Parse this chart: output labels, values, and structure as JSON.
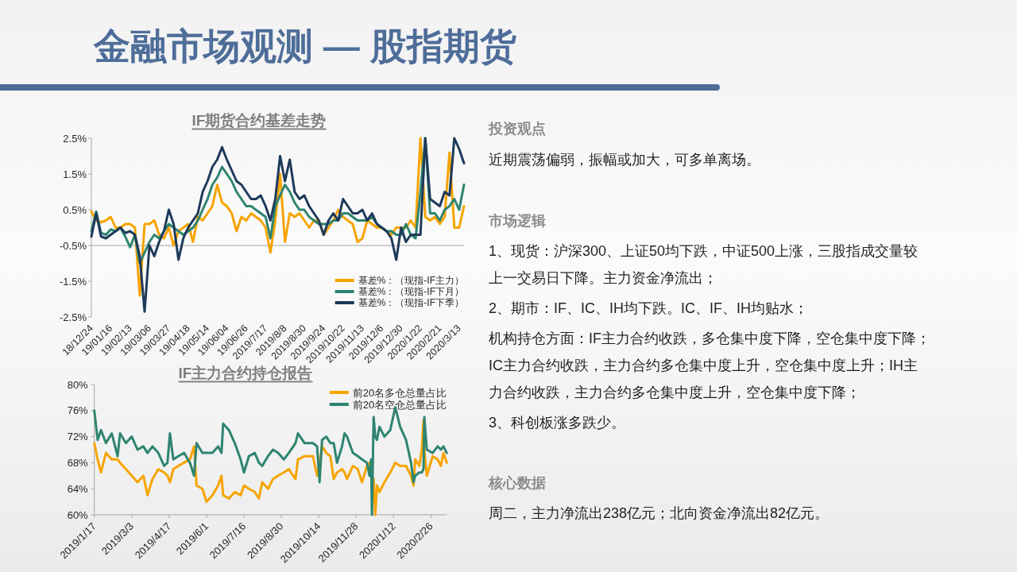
{
  "chart_data": [
    {
      "type": "other",
      "title": "金融市场观测 — 股指期货"
    },
    {
      "type": "line",
      "title": "IF期货合约基差走势",
      "categories": [
        "18/12/24",
        null,
        null,
        null,
        "19/01/16",
        null,
        null,
        null,
        "19/02/13",
        null,
        null,
        null,
        "19/03/06",
        null,
        null,
        null,
        "19/03/27",
        null,
        null,
        null,
        "19/04/18",
        null,
        null,
        null,
        "19/05/14",
        null,
        null,
        null,
        "19/06/04",
        null,
        null,
        null,
        "19/06/26",
        null,
        null,
        null,
        "2019/7/17",
        null,
        null,
        null,
        "2019/8/8",
        null,
        null,
        null,
        "2019/8/30",
        null,
        null,
        null,
        "2019/9/24",
        null,
        null,
        null,
        "2019/10/22",
        null,
        null,
        null,
        "2019/11/13",
        null,
        null,
        null,
        "2019/12/6",
        null,
        null,
        null,
        "2019/12/30",
        null,
        null,
        null,
        "2020/1/22",
        null,
        null,
        null,
        "2020/2/21",
        null,
        null,
        null,
        "2020/3/13",
        null
      ],
      "series": [
        {
          "name": "基差%：（现指-IF主力）",
          "color": "#f7a400",
          "values": [
            0.45,
            0.2,
            0.15,
            0.2,
            0.3,
            0.0,
            0.0,
            0.1,
            0.1,
            0.0,
            -1.9,
            0.1,
            0.1,
            0.2,
            -0.2,
            -0.3,
            0.0,
            -0.5,
            -0.1,
            0.0,
            0.1,
            -0.4,
            0.3,
            0.2,
            0.4,
            0.6,
            1.2,
            0.7,
            0.6,
            0.4,
            -0.1,
            0.3,
            0.2,
            0.4,
            0.3,
            0.2,
            0.0,
            -0.7,
            0.2,
            1.5,
            -0.4,
            0.4,
            0.3,
            0.4,
            0.2,
            0.0,
            0.2,
            0.2,
            -0.2,
            0.0,
            0.2,
            0.5,
            0.3,
            0.2,
            0.1,
            -0.4,
            -0.3,
            0.2,
            0.1,
            0.0,
            0.0,
            -0.1,
            -0.2,
            0.0,
            0.0,
            0.0,
            0.2,
            0.0,
            2.5,
            0.3,
            0.2,
            0.3,
            0.1,
            0.3,
            2.1,
            0.0,
            0.0,
            0.6
          ]
        },
        {
          "name": "基差%：（现指-IF下月）",
          "color": "#2e8470",
          "values": [
            -0.1,
            0.45,
            -0.15,
            -0.2,
            -0.05,
            -0.1,
            0.0,
            -0.25,
            -0.55,
            -0.2,
            -1.0,
            -0.7,
            -0.4,
            -0.2,
            -0.3,
            -0.1,
            0.1,
            0.0,
            -0.1,
            -0.2,
            -0.1,
            0.0,
            0.2,
            0.5,
            0.8,
            1.2,
            1.4,
            1.7,
            1.5,
            1.3,
            1.0,
            0.8,
            0.6,
            0.6,
            0.5,
            0.4,
            0.3,
            -0.3,
            0.6,
            0.9,
            1.2,
            1.0,
            0.7,
            0.5,
            0.5,
            0.3,
            0.2,
            0.1,
            0.1,
            0.1,
            0.2,
            0.2,
            0.4,
            0.4,
            0.3,
            0.2,
            0.2,
            0.2,
            0.3,
            0.1,
            0.0,
            -0.1,
            -0.1,
            -0.2,
            -0.2,
            0.1,
            -0.2,
            -0.3,
            1.0,
            2.5,
            0.4,
            0.4,
            0.2,
            0.5,
            0.6,
            0.8,
            0.5,
            1.2
          ]
        },
        {
          "name": "基差%：（现指-IF下季）",
          "color": "#1e3a5a",
          "values": [
            -0.25,
            0.4,
            -0.25,
            -0.3,
            -0.2,
            -0.1,
            0.0,
            -0.15,
            -0.1,
            -0.2,
            -0.8,
            -2.35,
            -0.5,
            -0.8,
            -0.4,
            -0.1,
            0.5,
            0.1,
            -0.9,
            -0.3,
            0.0,
            0.2,
            0.4,
            1.0,
            1.3,
            1.7,
            1.9,
            2.25,
            1.9,
            1.6,
            1.3,
            1.2,
            1.0,
            0.8,
            0.8,
            0.9,
            0.6,
            0.2,
            0.8,
            2.0,
            1.3,
            1.9,
            1.0,
            0.8,
            0.9,
            0.6,
            0.4,
            0.2,
            -0.2,
            0.2,
            0.4,
            0.2,
            0.8,
            0.6,
            0.4,
            0.4,
            0.5,
            0.2,
            0.4,
            0.1,
            0.0,
            -0.1,
            -0.3,
            -0.9,
            0.0,
            -0.4,
            -0.2,
            -0.2,
            -0.2,
            2.5,
            0.8,
            0.7,
            0.6,
            1.0,
            0.9,
            2.5,
            2.2,
            1.8
          ]
        }
      ],
      "ylim": [
        -2.5,
        2.5
      ],
      "yticks": [
        {
          "value": -2.5,
          "label": "-2.5%"
        },
        {
          "value": -1.5,
          "label": "-1.5%"
        },
        {
          "value": -0.5,
          "label": "-0.5%"
        },
        {
          "value": 0.5,
          "label": "0.5%"
        },
        {
          "value": 1.5,
          "label": "1.5%"
        },
        {
          "value": 2.5,
          "label": "2.5%"
        }
      ],
      "legend": "bottom right"
    },
    {
      "type": "line",
      "title": "IF主力合约持仓报告",
      "x": [
        "2019-01-17",
        "2019-01-21",
        "2019-01-25",
        "2019-01-31",
        "2019-02-07",
        "2019-02-14",
        "2019-02-17",
        "2019-02-24",
        "2019-03-03",
        "2019-03-10",
        "2019-03-17",
        "2019-03-22",
        "2019-03-28",
        "2019-04-04",
        "2019-04-11",
        "2019-04-15",
        "2019-04-18",
        "2019-04-22",
        "2019-04-28",
        "2019-05-05",
        "2019-05-12",
        "2019-05-17",
        "2019-05-20",
        "2019-05-27",
        "2019-06-01",
        "2019-06-08",
        "2019-06-15",
        "2019-06-19",
        "2019-06-21",
        "2019-06-28",
        "2019-07-05",
        "2019-07-12",
        "2019-07-16",
        "2019-07-22",
        "2019-07-29",
        "2019-08-03",
        "2019-08-07",
        "2019-08-14",
        "2019-08-20",
        "2019-08-26",
        "2019-09-02",
        "2019-09-08",
        "2019-09-16",
        "2019-09-19",
        "2019-09-27",
        "2019-10-07",
        "2019-10-12",
        "2019-10-15",
        "2019-10-18",
        "2019-10-23",
        "2019-10-28",
        "2019-11-01",
        "2019-11-05",
        "2019-11-11",
        "2019-11-14",
        "2019-11-17",
        "2019-11-24",
        "2019-11-30",
        "2019-12-05",
        "2019-12-11",
        "2019-12-14",
        "2019-12-16",
        "2019-12-17",
        "2019-12-19",
        "2019-12-21",
        "2019-12-23",
        "2019-12-26",
        "2020-01-01",
        "2020-01-08",
        "2020-01-14",
        "2020-01-20",
        "2020-01-27",
        "2020-02-02",
        "2020-02-05",
        "2020-02-07",
        "2020-02-12",
        "2020-02-15",
        "2020-02-17",
        "2020-02-18",
        "2020-02-21",
        "2020-02-28",
        "2020-03-05",
        "2020-03-09",
        "2020-03-12",
        "2020-03-16"
      ],
      "series": [
        {
          "name": "前20名多仓总量占比",
          "color": "#f7a400",
          "values": [
            71.0,
            68.5,
            66.5,
            69.5,
            68.5,
            68.5,
            68.0,
            67.0,
            66.0,
            65.0,
            66.0,
            63.0,
            65.5,
            67.0,
            66.5,
            66.0,
            65.0,
            67.0,
            67.5,
            68.0,
            68.5,
            70.5,
            64.5,
            64.0,
            62.0,
            63.0,
            64.5,
            66.0,
            63.0,
            62.5,
            63.5,
            63.0,
            64.5,
            64.0,
            63.5,
            62.5,
            65.0,
            64.0,
            65.5,
            66.0,
            66.5,
            67.0,
            65.5,
            68.5,
            69.0,
            69.0,
            66.0,
            68.0,
            70.5,
            69.5,
            69.0,
            65.5,
            66.5,
            67.0,
            66.5,
            65.5,
            67.5,
            67.0,
            65.0,
            67.5,
            68.0,
            66.0,
            66.0,
            65.5,
            60.0,
            64.5,
            63.5,
            65.0,
            66.5,
            68.0,
            67.5,
            67.5,
            66.0,
            64.5,
            68.5,
            67.5,
            70.0,
            74.5,
            70.0,
            66.0,
            69.0,
            68.5,
            67.5,
            69.5,
            68.0
          ]
        },
        {
          "name": "前20名空仓总量占比",
          "color": "#2e8470",
          "values": [
            76.0,
            71.5,
            73.0,
            71.0,
            72.5,
            69.0,
            72.5,
            71.0,
            72.0,
            70.0,
            70.5,
            69.5,
            70.5,
            69.5,
            67.5,
            68.0,
            72.5,
            68.5,
            69.0,
            69.5,
            68.0,
            66.0,
            71.0,
            69.5,
            69.5,
            69.5,
            70.5,
            69.5,
            74.0,
            73.0,
            71.0,
            68.5,
            66.5,
            69.0,
            69.5,
            68.0,
            67.5,
            69.0,
            70.0,
            69.5,
            68.5,
            69.5,
            71.0,
            72.5,
            71.0,
            71.0,
            70.5,
            65.0,
            71.5,
            72.0,
            71.0,
            71.0,
            68.0,
            70.5,
            72.5,
            72.0,
            69.5,
            69.0,
            68.5,
            68.0,
            66.0,
            68.5,
            60.0,
            75.0,
            72.0,
            71.5,
            73.5,
            72.0,
            73.0,
            76.5,
            73.5,
            71.5,
            68.0,
            65.0,
            66.0,
            66.5,
            66.5,
            67.0,
            75.0,
            70.0,
            69.5,
            70.5,
            70.0,
            70.5,
            69.5
          ]
        }
      ],
      "xlim": [
        "2019-01-17",
        "2020-03-16"
      ],
      "xticks": [
        {
          "value": "2019-01-17",
          "label": "2019/1/17"
        },
        {
          "value": "2019-03-03",
          "label": "2019/3/3"
        },
        {
          "value": "2019-04-17",
          "label": "2019/4/17"
        },
        {
          "value": "2019-06-01",
          "label": "2019/6/1"
        },
        {
          "value": "2019-07-16",
          "label": "2019/7/16"
        },
        {
          "value": "2019-08-30",
          "label": "2019/8/30"
        },
        {
          "value": "2019-10-14",
          "label": "2019/10/14"
        },
        {
          "value": "2019-11-28",
          "label": "2019/11/28"
        },
        {
          "value": "2020-01-12",
          "label": "2020/1/12"
        },
        {
          "value": "2020-02-26",
          "label": "2020/2/26"
        }
      ],
      "ylim": [
        60,
        80
      ],
      "yticks": [
        {
          "value": 60,
          "label": "60%"
        },
        {
          "value": 64,
          "label": "64%"
        },
        {
          "value": 68,
          "label": "68%"
        },
        {
          "value": 72,
          "label": "72%"
        },
        {
          "value": 76,
          "label": "76%"
        },
        {
          "value": 80,
          "label": "80%"
        }
      ],
      "legend": "top right"
    },
    {
      "type": "other",
      "title": "投资观点",
      "annotations": [
        "近期震荡偏弱，振幅或加大，可多单离场。"
      ]
    },
    {
      "type": "other",
      "title": "市场逻辑",
      "annotations": [
        "1、现货：沪深300、上证50均下跌，中证500上涨，三股指成交量较上一交易日下降。主力资金净流出；",
        "2、期市：IF、IC、IH均下跌。IC、IF、IH均贴水；",
        "机构持仓方面：IF主力合约收跌，多仓集中度下降，空仓集中度下降；IC主力合约收跌，主力合约多仓集中度上升，空仓集中度上升；IH主力合约收跌，主力合约多仓集中度上升，空仓集中度下降；",
        "3、科创板涨多跌少。"
      ]
    },
    {
      "type": "other",
      "title": "核心数据",
      "annotations": [
        "周二，主力净流出238亿元；北向资金净流出82亿元。"
      ]
    }
  ]
}
